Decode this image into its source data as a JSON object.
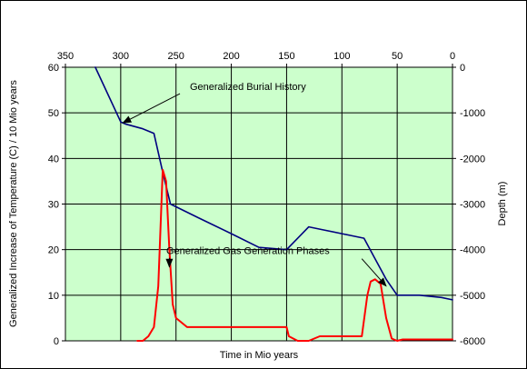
{
  "chart_data": {
    "type": "line",
    "title": "",
    "xlabel": "Time in Mio years",
    "ylabel_left": "Generalized Increase of Temperature (C) / 10 Mio years",
    "ylabel_right": "Depth (m)",
    "x_reversed": true,
    "xlim": [
      350,
      0
    ],
    "ylim_left": [
      0,
      60
    ],
    "ylim_right": [
      -6000,
      0
    ],
    "x_ticks": [
      350,
      300,
      250,
      200,
      150,
      100,
      50,
      0
    ],
    "y_ticks_left": [
      0,
      10,
      20,
      30,
      40,
      50,
      60
    ],
    "y_ticks_right": [
      -6000,
      -5000,
      -4000,
      -3000,
      -2000,
      -1000,
      0
    ],
    "grid": true,
    "legend": "none",
    "colors": {
      "plot_background": "#ccffcc",
      "burial_line": "#000080",
      "gas_line": "#ff0000",
      "grid": "#000000"
    },
    "series": [
      {
        "axis": "right",
        "color": "#000080",
        "x": [
          323,
          300,
          295,
          280,
          270,
          262,
          255,
          230,
          200,
          175,
          150,
          130,
          120,
          100,
          90,
          80,
          70,
          60,
          50,
          30,
          10,
          0
        ],
        "y": [
          0,
          -1200,
          -1250,
          -1350,
          -1450,
          -2300,
          -3000,
          -3300,
          -3650,
          -3950,
          -4000,
          -3500,
          -3550,
          -3650,
          -3700,
          -3750,
          -4200,
          -4650,
          -5000,
          -5000,
          -5050,
          -5100
        ]
      },
      {
        "axis": "left",
        "color": "#ff0000",
        "x": [
          285,
          280,
          275,
          270,
          266,
          262,
          259,
          256,
          253,
          250,
          245,
          240,
          230,
          200,
          180,
          160,
          150,
          148,
          140,
          130,
          120,
          100,
          90,
          82,
          77,
          74,
          70,
          65,
          60,
          55,
          52,
          50,
          45,
          30,
          0
        ],
        "y": [
          0,
          0,
          1,
          3,
          12,
          37.5,
          35,
          20,
          8,
          5,
          4,
          3,
          3,
          3,
          3,
          3,
          3,
          1,
          0,
          0,
          1,
          1,
          1,
          1,
          10,
          13,
          13.5,
          12.5,
          5,
          0.5,
          0.2,
          0,
          0.3,
          0.3,
          0.3
        ]
      }
    ],
    "annotations": [
      {
        "text": "Generalized Burial History",
        "x": 185,
        "y": 55,
        "arrow_to": [
          298,
          47.8
        ]
      },
      {
        "text": "Generalized Gas Generation Phases",
        "x": 185,
        "y": 19,
        "arrow_to": [
          256,
          16.2
        ]
      },
      {
        "text": "",
        "x": 82,
        "y": 18,
        "arrow_to": [
          60,
          12
        ]
      }
    ]
  }
}
